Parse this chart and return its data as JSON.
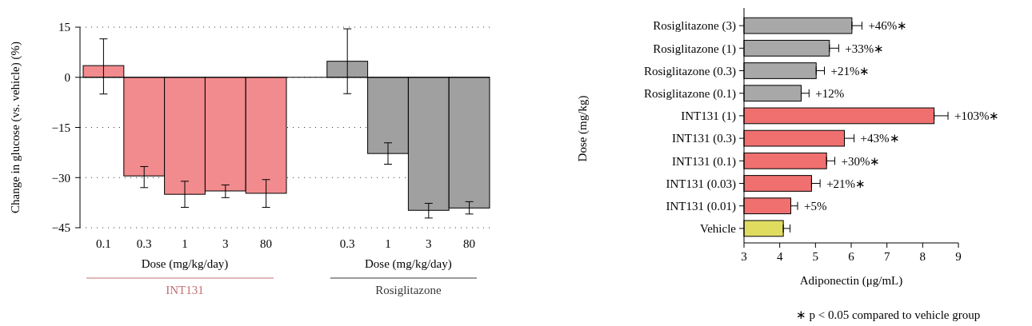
{
  "chart_data": [
    {
      "type": "bar",
      "ylabel": "Change in glucose (vs. vehicle) (%)",
      "categories": [
        "0.1",
        "0.3",
        "1",
        "3",
        "80",
        null,
        "0.3",
        "1",
        "3",
        "80"
      ],
      "values": [
        3.5,
        -29.5,
        -35,
        -34,
        -34.7,
        null,
        4.8,
        -22.8,
        -39.8,
        -39.1
      ],
      "errors": [
        [
          -5,
          11.5
        ],
        [
          -33,
          -26.7
        ],
        [
          -38.9,
          -31.1
        ],
        [
          -36,
          -32.2
        ],
        [
          -38.9,
          -30.6
        ],
        null,
        [
          -4.9,
          14.5
        ],
        [
          -26,
          -19.6
        ],
        [
          -42.1,
          -37.7
        ],
        [
          -40.9,
          -37.2
        ]
      ],
      "colors": [
        "#f28b8e",
        "#f28b8e",
        "#f28b8e",
        "#f28b8e",
        "#f28b8e",
        null,
        "#a0a0a0",
        "#a0a0a0",
        "#a0a0a0",
        "#a0a0a0"
      ],
      "ylim": [
        -45,
        15
      ],
      "yticks": [
        -45,
        -30,
        -15,
        0,
        15
      ],
      "grid": "y",
      "annotations": [
        "Dose (mg/kg/day)",
        "INT131",
        "Dose (mg/kg/day)",
        "Rosiglitazone"
      ]
    },
    {
      "type": "bar",
      "orientation": "horizontal",
      "ylabel": "Dose (mg/kg)",
      "xlabel": "Adiponectin (μg/mL)",
      "categories": [
        "Rosiglitazone (3)",
        "Rosiglitazone (1)",
        "Rosiglitazone (0.3)",
        "Rosiglitazone (0.1)",
        "INT131 (1)",
        "INT131 (0.3)",
        "INT131 (0.1)",
        "INT131 (0.03)",
        "INT131 (0.01)",
        "Vehicle"
      ],
      "values": [
        6.02,
        5.39,
        5.02,
        4.6,
        8.32,
        5.81,
        5.31,
        4.89,
        4.31,
        4.1
      ],
      "errors": [
        [
          6.02,
          6.3
        ],
        [
          5.39,
          5.65
        ],
        [
          5.02,
          5.25
        ],
        [
          4.6,
          4.82
        ],
        [
          8.32,
          8.71
        ],
        [
          5.81,
          6.08
        ],
        [
          5.31,
          5.54
        ],
        [
          4.89,
          5.13
        ],
        [
          4.31,
          4.5
        ],
        [
          4.1,
          4.29
        ]
      ],
      "colors": [
        "#a8a8a8",
        "#a8a8a8",
        "#a8a8a8",
        "#a8a8a8",
        "#f07070",
        "#f07070",
        "#f07070",
        "#f07070",
        "#f07070",
        "#e0dc60"
      ],
      "xlim": [
        3,
        9
      ],
      "xticks": [
        3,
        4,
        5,
        6,
        7,
        8,
        9
      ],
      "grid": false,
      "annotations": [
        {
          "text": "+46%∗",
          "x": 6.02,
          "y": "Rosiglitazone (3)"
        },
        {
          "text": "+33%∗",
          "x": 5.39,
          "y": "Rosiglitazone (1)"
        },
        {
          "text": "+21%∗",
          "x": 5.02,
          "y": "Rosiglitazone (0.3)"
        },
        {
          "text": "+12%",
          "x": 4.6,
          "y": "Rosiglitazone (0.1)"
        },
        {
          "text": "+103%∗",
          "x": 8.32,
          "y": "INT131 (1)"
        },
        {
          "text": "+43%∗",
          "x": 5.81,
          "y": "INT131 (0.3)"
        },
        {
          "text": "+30%∗",
          "x": 5.31,
          "y": "INT131 (0.1)"
        },
        {
          "text": "+21%∗",
          "x": 4.89,
          "y": "INT131 (0.03)"
        },
        {
          "text": "+5%",
          "x": 4.31,
          "y": "INT131 (0.01)"
        },
        "∗ p < 0.05 compared to vehicle group"
      ]
    }
  ]
}
